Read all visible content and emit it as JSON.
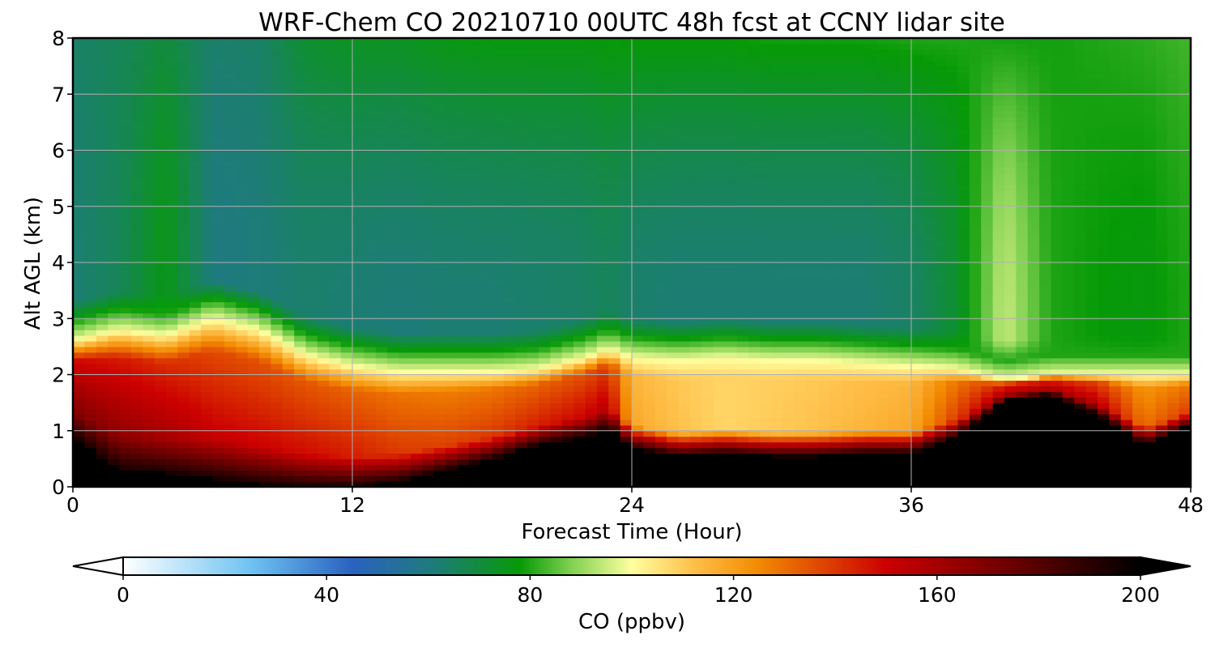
{
  "chart_data": {
    "type": "heatmap",
    "title": "WRF-Chem CO  20210710 00UTC 48h fcst at CCNY lidar site",
    "xlabel": "Forecast Time (Hour)",
    "ylabel": "Alt AGL (km)",
    "xlim": [
      0,
      48
    ],
    "ylim": [
      0,
      8
    ],
    "x_ticks": [
      "0",
      "12",
      "24",
      "36",
      "48"
    ],
    "y_ticks": [
      "0",
      "1",
      "2",
      "3",
      "4",
      "5",
      "6",
      "7",
      "8"
    ],
    "grid": true,
    "colorbar": {
      "label": "CO  (ppbv)",
      "range": [
        0,
        200
      ],
      "ticks": [
        "0",
        "40",
        "80",
        "120",
        "160",
        "200"
      ],
      "extend": "both",
      "colors": [
        {
          "value": 0,
          "color": "#ffffff"
        },
        {
          "value": 25,
          "color": "#6fc3f2"
        },
        {
          "value": 45,
          "color": "#2a62c0"
        },
        {
          "value": 60,
          "color": "#1f7a80"
        },
        {
          "value": 78,
          "color": "#079a07"
        },
        {
          "value": 88,
          "color": "#7fd050"
        },
        {
          "value": 100,
          "color": "#ffffa0"
        },
        {
          "value": 112,
          "color": "#ffc04a"
        },
        {
          "value": 125,
          "color": "#f28a00"
        },
        {
          "value": 150,
          "color": "#cc0000"
        },
        {
          "value": 175,
          "color": "#6a0000"
        },
        {
          "value": 200,
          "color": "#000000"
        }
      ]
    },
    "times_hour": [
      0,
      2,
      4,
      6,
      8,
      10,
      12,
      14,
      16,
      18,
      20,
      22,
      23,
      24,
      26,
      28,
      30,
      32,
      34,
      36,
      38,
      40,
      42,
      44,
      46,
      48
    ],
    "black_top_km": [
      0.9,
      0.3,
      0.25,
      0.15,
      0.05,
      0.0,
      0.0,
      0.1,
      0.3,
      0.5,
      0.75,
      0.9,
      1.05,
      0.7,
      0.55,
      0.6,
      0.55,
      0.55,
      0.6,
      0.6,
      0.9,
      1.55,
      1.65,
      1.3,
      0.75,
      1.1
    ],
    "polluted_top_km": [
      2.6,
      2.8,
      2.7,
      3.0,
      2.8,
      2.35,
      2.15,
      2.05,
      2.05,
      2.05,
      2.1,
      2.3,
      2.45,
      2.3,
      2.25,
      2.3,
      2.25,
      2.25,
      2.2,
      2.15,
      2.1,
      1.9,
      2.0,
      2.0,
      2.0,
      2.0
    ],
    "low_core_ppbv": [
      170,
      165,
      160,
      152,
      150,
      148,
      145,
      140,
      138,
      140,
      145,
      150,
      155,
      118,
      112,
      108,
      110,
      112,
      115,
      118,
      140,
      160,
      160,
      155,
      130,
      140
    ],
    "upper_ppbv": [
      62,
      66,
      76,
      60,
      61,
      63,
      62,
      61,
      62,
      62,
      63,
      64,
      66,
      63,
      62,
      62,
      62,
      62,
      62,
      64,
      72,
      95,
      80,
      78,
      77,
      80
    ],
    "top_ppbv": [
      64,
      66,
      70,
      63,
      64,
      72,
      74,
      74,
      76,
      77,
      77,
      77,
      78,
      78,
      78,
      78,
      79,
      79,
      79,
      80,
      80,
      79,
      79,
      80,
      81,
      83
    ]
  }
}
